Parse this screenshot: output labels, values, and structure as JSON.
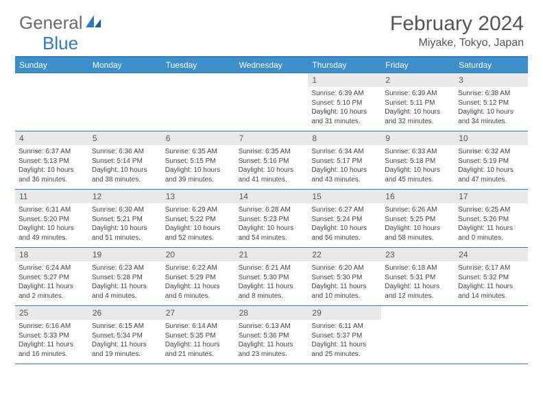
{
  "logo": {
    "text1": "General",
    "text2": "Blue"
  },
  "title": "February 2024",
  "location": "Miyake, Tokyo, Japan",
  "day_headers": [
    "Sunday",
    "Monday",
    "Tuesday",
    "Wednesday",
    "Thursday",
    "Friday",
    "Saturday"
  ],
  "colors": {
    "header_bg": "#3d8fc9",
    "border": "#2d7bc0",
    "daynum_bg": "#e9e9e9",
    "text": "#444444"
  },
  "weeks": [
    [
      null,
      null,
      null,
      null,
      {
        "n": "1",
        "sr": "Sunrise: 6:39 AM",
        "ss": "Sunset: 5:10 PM",
        "dl": "Daylight: 10 hours and 31 minutes."
      },
      {
        "n": "2",
        "sr": "Sunrise: 6:39 AM",
        "ss": "Sunset: 5:11 PM",
        "dl": "Daylight: 10 hours and 32 minutes."
      },
      {
        "n": "3",
        "sr": "Sunrise: 6:38 AM",
        "ss": "Sunset: 5:12 PM",
        "dl": "Daylight: 10 hours and 34 minutes."
      }
    ],
    [
      {
        "n": "4",
        "sr": "Sunrise: 6:37 AM",
        "ss": "Sunset: 5:13 PM",
        "dl": "Daylight: 10 hours and 36 minutes."
      },
      {
        "n": "5",
        "sr": "Sunrise: 6:36 AM",
        "ss": "Sunset: 5:14 PM",
        "dl": "Daylight: 10 hours and 38 minutes."
      },
      {
        "n": "6",
        "sr": "Sunrise: 6:35 AM",
        "ss": "Sunset: 5:15 PM",
        "dl": "Daylight: 10 hours and 39 minutes."
      },
      {
        "n": "7",
        "sr": "Sunrise: 6:35 AM",
        "ss": "Sunset: 5:16 PM",
        "dl": "Daylight: 10 hours and 41 minutes."
      },
      {
        "n": "8",
        "sr": "Sunrise: 6:34 AM",
        "ss": "Sunset: 5:17 PM",
        "dl": "Daylight: 10 hours and 43 minutes."
      },
      {
        "n": "9",
        "sr": "Sunrise: 6:33 AM",
        "ss": "Sunset: 5:18 PM",
        "dl": "Daylight: 10 hours and 45 minutes."
      },
      {
        "n": "10",
        "sr": "Sunrise: 6:32 AM",
        "ss": "Sunset: 5:19 PM",
        "dl": "Daylight: 10 hours and 47 minutes."
      }
    ],
    [
      {
        "n": "11",
        "sr": "Sunrise: 6:31 AM",
        "ss": "Sunset: 5:20 PM",
        "dl": "Daylight: 10 hours and 49 minutes."
      },
      {
        "n": "12",
        "sr": "Sunrise: 6:30 AM",
        "ss": "Sunset: 5:21 PM",
        "dl": "Daylight: 10 hours and 51 minutes."
      },
      {
        "n": "13",
        "sr": "Sunrise: 6:29 AM",
        "ss": "Sunset: 5:22 PM",
        "dl": "Daylight: 10 hours and 52 minutes."
      },
      {
        "n": "14",
        "sr": "Sunrise: 6:28 AM",
        "ss": "Sunset: 5:23 PM",
        "dl": "Daylight: 10 hours and 54 minutes."
      },
      {
        "n": "15",
        "sr": "Sunrise: 6:27 AM",
        "ss": "Sunset: 5:24 PM",
        "dl": "Daylight: 10 hours and 56 minutes."
      },
      {
        "n": "16",
        "sr": "Sunrise: 6:26 AM",
        "ss": "Sunset: 5:25 PM",
        "dl": "Daylight: 10 hours and 58 minutes."
      },
      {
        "n": "17",
        "sr": "Sunrise: 6:25 AM",
        "ss": "Sunset: 5:26 PM",
        "dl": "Daylight: 11 hours and 0 minutes."
      }
    ],
    [
      {
        "n": "18",
        "sr": "Sunrise: 6:24 AM",
        "ss": "Sunset: 5:27 PM",
        "dl": "Daylight: 11 hours and 2 minutes."
      },
      {
        "n": "19",
        "sr": "Sunrise: 6:23 AM",
        "ss": "Sunset: 5:28 PM",
        "dl": "Daylight: 11 hours and 4 minutes."
      },
      {
        "n": "20",
        "sr": "Sunrise: 6:22 AM",
        "ss": "Sunset: 5:29 PM",
        "dl": "Daylight: 11 hours and 6 minutes."
      },
      {
        "n": "21",
        "sr": "Sunrise: 6:21 AM",
        "ss": "Sunset: 5:30 PM",
        "dl": "Daylight: 11 hours and 8 minutes."
      },
      {
        "n": "22",
        "sr": "Sunrise: 6:20 AM",
        "ss": "Sunset: 5:30 PM",
        "dl": "Daylight: 11 hours and 10 minutes."
      },
      {
        "n": "23",
        "sr": "Sunrise: 6:18 AM",
        "ss": "Sunset: 5:31 PM",
        "dl": "Daylight: 11 hours and 12 minutes."
      },
      {
        "n": "24",
        "sr": "Sunrise: 6:17 AM",
        "ss": "Sunset: 5:32 PM",
        "dl": "Daylight: 11 hours and 14 minutes."
      }
    ],
    [
      {
        "n": "25",
        "sr": "Sunrise: 6:16 AM",
        "ss": "Sunset: 5:33 PM",
        "dl": "Daylight: 11 hours and 16 minutes."
      },
      {
        "n": "26",
        "sr": "Sunrise: 6:15 AM",
        "ss": "Sunset: 5:34 PM",
        "dl": "Daylight: 11 hours and 19 minutes."
      },
      {
        "n": "27",
        "sr": "Sunrise: 6:14 AM",
        "ss": "Sunset: 5:35 PM",
        "dl": "Daylight: 11 hours and 21 minutes."
      },
      {
        "n": "28",
        "sr": "Sunrise: 6:13 AM",
        "ss": "Sunset: 5:36 PM",
        "dl": "Daylight: 11 hours and 23 minutes."
      },
      {
        "n": "29",
        "sr": "Sunrise: 6:11 AM",
        "ss": "Sunset: 5:37 PM",
        "dl": "Daylight: 11 hours and 25 minutes."
      },
      null,
      null
    ]
  ]
}
